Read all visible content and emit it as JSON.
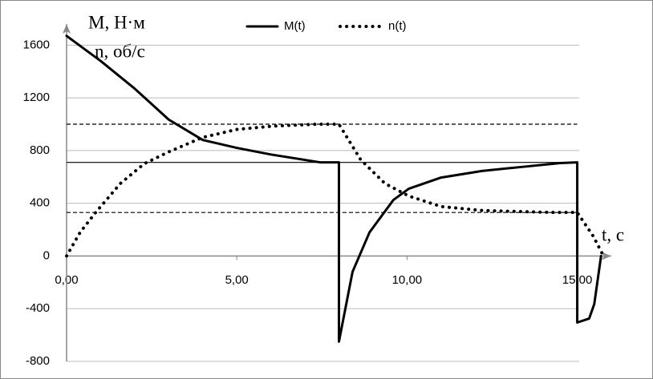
{
  "chart_data": {
    "type": "line",
    "legend": "top",
    "x_label": "t, с",
    "y_labels": [
      "M, Н·м",
      "n, об/с"
    ],
    "xlim": [
      0,
      16
    ],
    "ylim": [
      -800,
      1760
    ],
    "xticks": [
      {
        "value": 0,
        "label": "0,00"
      },
      {
        "value": 5,
        "label": "5,00"
      },
      {
        "value": 10,
        "label": "10,00"
      },
      {
        "value": 15,
        "label": "15,00"
      }
    ],
    "yticks": [
      -800,
      -400,
      0,
      400,
      800,
      1200,
      1600
    ],
    "grid": true,
    "reference_lines": [
      {
        "value": 1000,
        "style": "dashed"
      },
      {
        "value": 710,
        "style": "solid"
      },
      {
        "value": 330,
        "style": "dashed"
      }
    ],
    "series": [
      {
        "name": "M(t)",
        "color": "#000000",
        "style": "solid",
        "x": [
          0,
          1,
          2,
          3,
          4,
          5,
          6,
          7.46,
          8,
          8,
          8.4,
          8.9,
          9.6,
          10.05,
          11,
          12.2,
          13.35,
          14.5,
          15,
          15,
          15.35,
          15.5,
          15.7
        ],
        "values": [
          1670,
          1480,
          1270,
          1035,
          880,
          820,
          770,
          710,
          710,
          -650,
          -120,
          180,
          425,
          510,
          595,
          645,
          675,
          705,
          710,
          -505,
          -475,
          -365,
          0
        ]
      },
      {
        "name": "n(t)",
        "color": "#000000",
        "style": "dotted",
        "x": [
          0,
          0.4,
          0.87,
          1.58,
          2.28,
          3,
          4,
          5,
          6.05,
          7.37,
          8,
          8.64,
          9.35,
          10.05,
          11,
          12.2,
          14.3,
          15,
          15.47,
          15.75
        ],
        "values": [
          0,
          180,
          335,
          550,
          700,
          790,
          900,
          960,
          985,
          1000,
          1000,
          730,
          550,
          455,
          375,
          345,
          330,
          330,
          150,
          10
        ]
      }
    ]
  }
}
